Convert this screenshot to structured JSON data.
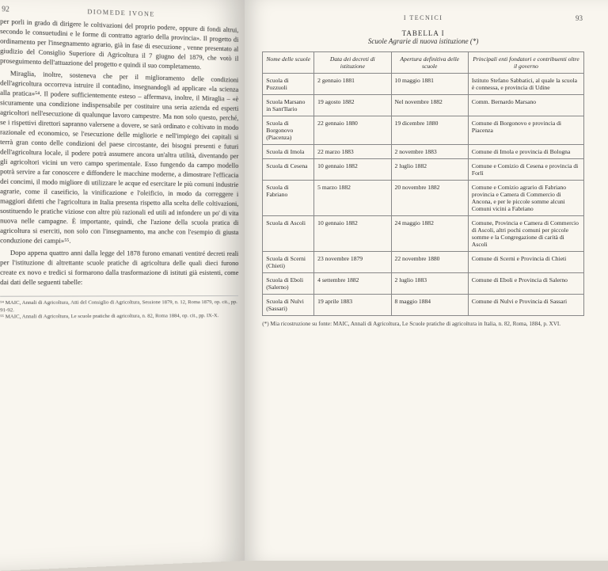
{
  "leftPage": {
    "runningHead": "DIOMEDE IVONE",
    "pageNumber": "92",
    "paragraphs": [
      "per porli in grado di dirigere le coltivazioni del proprio podere, oppure di fondi altrui, secondo le consuetudini e le forme di contratto agrario della provincia». Il progetto di ordinamento per l'insegnamento agrario, già in fase di esecuzione , venne presentato al giudizio del Consiglio Superiore di Agricoltura il 7 giugno del 1879, che votò il proseguimento dell'attuazione del progetto e quindi il suo completamento.",
      "Miraglia, inoltre, sosteneva che per il miglioramento delle condizioni dell'agricoltura occorreva istruire il contadino, insegnandogli ad applicare «la scienza alla pratica»⁵⁴. Il podere sufficientemente esteso – affermava, inoltre, il Miraglia – «è sicuramente una condizione indispensabile per costituire una seria azienda ed esperti agricoltori nell'esecuzione di qualunque lavoro campestre. Ma non solo questo, perché, se i rispettivi direttori sapranno valersene a dovere, se sarà ordinato e coltivato in modo razionale ed economico, se l'esecuzione delle migliorie e nell'impiego dei capitali si terrà gran conto delle condizioni del paese circostante, dei bisogni presenti e futuri dell'agricoltura locale, il podere potrà assumere ancora un'altra utilità, diventando per gli agricoltori vicini un vero campo sperimentale. Esso fungendo da campo modello potrà servire a far conoscere e diffondere le macchine moderne, a dimostrare l'efficacia dei concimi, il modo migliore di utilizzare le acque ed esercitare le più comuni industrie agrarie, come il caseificio, la vinificazione e l'oleificio, in modo da correggere i maggiori difetti che l'agricoltura in Italia presenta rispetto alla scelta delle coltivazioni, sostituendo le pratiche viziose con altre più razionali ed utili ad infondere un po' di vita nuova nelle campagne. È importante, quindi, che l'azione della scuola pratica di agricoltura si eserciti, non solo con l'insegnamento, ma anche con l'esempio di giusta conduzione dei campi»⁵⁵.",
      "Dopo appena quattro anni dalla legge del 1878 furono emanati ventitré decreti reali per l'istituzione di altrettante scuole pratiche di agricoltura delle quali dieci furono create ex novo e tredici si formarono dalla trasformazione di istituti già esistenti, come dai dati delle seguenti tabelle:"
    ],
    "footnotes": [
      "⁵⁴ MAIC, Annali di Agricoltura, Atti del Consiglio di Agricoltura, Sessione 1879, n. 12, Roma 1879, op. cit., pp. 91-92.",
      "⁵⁵ MAIC, Annali di Agricoltura, Le scuole pratiche di agricoltura, n. 82, Roma 1884, op. cit., pp. IX-X."
    ]
  },
  "rightPage": {
    "runningHead": "I TECNICI",
    "pageNumber": "93",
    "tableTitle": "TABELLA I",
    "tableSubtitle": "Scuole Agrarie di nuova istituzione (*)",
    "table": {
      "columns": [
        "Nome delle scuole",
        "Data dei decreti di istituzione",
        "Apertura definitiva delle scuole",
        "Principali enti fondatori e contribuenti oltre il governo"
      ],
      "rows": [
        [
          "Scuola di Pozzuoli",
          "2 gennaio 1881",
          "10 maggio 1881",
          "Istituto Stefano Sabbatici, al quale la scuola è connessa, e provincia di Udine"
        ],
        [
          "Scuola Marsano in Sant'Ilario",
          "19 agosto 1882",
          "Nel novembre 1882",
          "Comm. Bernardo Marsano"
        ],
        [
          "Scuola di Borgonovo (Piacenza)",
          "22 gennaio 1880",
          "19 dicembre 1880",
          "Comune di Borgonovo e provincia di Piacenza"
        ],
        [
          "Scuola di Imola",
          "22 marzo 1883",
          "2 novembre 1883",
          "Comune di Imola e provincia di Bologna"
        ],
        [
          "Scuola di Cesena",
          "10 gennaio 1882",
          "2 luglio 1882",
          "Comune e Comizio di Cesena e provincia di Forlì"
        ],
        [
          "Scuola di Fabriano",
          "5 marzo 1882",
          "20 novembre 1882",
          "Comune e Comizio agrario di Fabriano provincia e Camera di Commercio di Ancona, e per le piccole somme alcuni Comuni vicini a Fabriano"
        ],
        [
          "Scuola di Ascoli",
          "10 gennaio 1882",
          "24 maggio 1882",
          "Comune, Provincia e Camera di Commercio di Ascoli, altri pochi comuni per piccole somme e la Congregazione di carità di Ascoli"
        ],
        [
          "Scuola di Scerni (Chieti)",
          "23 novembre 1879",
          "22 novembre 1880",
          "Comune di Scerni e Provincia di Chieti"
        ],
        [
          "Scuola di Eboli (Salerno)",
          "4 settembre 1882",
          "2 luglio 1883",
          "Comune di Eboli e Provincia di Salerno"
        ],
        [
          "Scuola di Nulvi (Sassari)",
          "19 aprile 1883",
          "8 maggio 1884",
          "Comune di Nulvi e Provincia di Sassari"
        ]
      ]
    },
    "tableFootnote": "(*) Mia ricostruzione su fonte: MAIC, Annali di Agricoltura, Le Scuole pratiche di agricoltura in Italia, n. 82, Roma, 1884, p. XVI."
  }
}
